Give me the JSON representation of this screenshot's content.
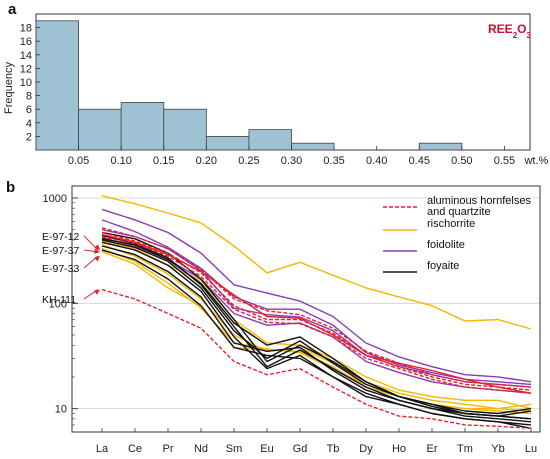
{
  "chart_data": [
    {
      "panel": "a",
      "type": "bar",
      "annotation": {
        "main": "REE",
        "sub": "2",
        "after": "O",
        "sub2": "3"
      },
      "ylabel": "Frequency",
      "xunit": "wt.%",
      "bin_edges": [
        0.0,
        0.05,
        0.1,
        0.15,
        0.2,
        0.25,
        0.3,
        0.35,
        0.4,
        0.45,
        0.5
      ],
      "values": [
        19,
        6,
        7,
        6,
        2,
        3,
        1,
        0,
        0,
        1
      ],
      "xticks": [
        "0.05",
        "0.10",
        "0.15",
        "0.20",
        "0.25",
        "0.30",
        "0.35",
        "0.40",
        "0.45",
        "0.50",
        "0.55"
      ],
      "yticks": [
        2,
        4,
        6,
        8,
        10,
        12,
        14,
        16,
        18
      ],
      "xlim": [
        0.0,
        0.58
      ],
      "ylim": [
        0,
        20
      ],
      "bar_color": "#9ec2d3",
      "grid": false
    },
    {
      "panel": "b",
      "type": "line",
      "yscale": "log",
      "ylim": [
        6,
        1300
      ],
      "yticks": [
        10,
        100,
        1000
      ],
      "categories": [
        "La",
        "Ce",
        "Pr",
        "Nd",
        "Sm",
        "Eu",
        "Gd",
        "Tb",
        "Dy",
        "Ho",
        "Er",
        "Tm",
        "Yb",
        "Lu"
      ],
      "legend": [
        {
          "label_lines": [
            "aluminous hornfelses",
            "and quartzite"
          ],
          "color": "#e8202a",
          "dash": true
        },
        {
          "label_lines": [
            "rischorrite"
          ],
          "color": "#f5b700",
          "dash": false
        },
        {
          "label_lines": [
            "foidolite"
          ],
          "color": "#8a3ab9",
          "dash": false
        },
        {
          "label_lines": [
            "foyaite"
          ],
          "color": "#111111",
          "dash": false
        }
      ],
      "sample_labels": [
        "E-97-12",
        "E-97-37",
        "E-97-33",
        "KH-111"
      ],
      "series": [
        {
          "group": "rischorrite",
          "color": "#f5b700",
          "dash": false,
          "values": [
            1050,
            880,
            720,
            580,
            350,
            195,
            245,
            185,
            140,
            115,
            95,
            68,
            70,
            57
          ]
        },
        {
          "group": "rischorrite",
          "color": "#f5b700",
          "dash": false,
          "values": [
            390,
            330,
            230,
            165,
            70,
            42,
            40,
            30,
            20,
            15,
            13,
            12,
            12,
            10
          ]
        },
        {
          "group": "rischorrite",
          "color": "#f5b700",
          "dash": false,
          "values": [
            360,
            280,
            190,
            110,
            50,
            35,
            38,
            27,
            18,
            14,
            12,
            11,
            10,
            9.5
          ]
        },
        {
          "group": "rischorrite",
          "color": "#f5b700",
          "dash": false,
          "values": [
            330,
            250,
            155,
            90,
            42,
            37,
            34,
            24,
            17,
            13,
            11,
            10,
            9.5,
            9
          ]
        },
        {
          "group": "rischorrite",
          "color": "#f5b700",
          "dash": false,
          "values": [
            310,
            235,
            140,
            95,
            38,
            36,
            35,
            25,
            16,
            13,
            11,
            10,
            10,
            11
          ]
        },
        {
          "group": "foidolite",
          "color": "#8a3ab9",
          "dash": false,
          "values": [
            780,
            620,
            470,
            300,
            150,
            125,
            105,
            75,
            42,
            31,
            25,
            21,
            20,
            18
          ]
        },
        {
          "group": "foidolite",
          "color": "#8a3ab9",
          "dash": false,
          "values": [
            620,
            480,
            340,
            215,
            115,
            88,
            88,
            62,
            34,
            26,
            22,
            19,
            18,
            17
          ]
        },
        {
          "group": "foidolite",
          "color": "#8a3ab9",
          "dash": false,
          "values": [
            500,
            430,
            330,
            205,
            90,
            78,
            74,
            55,
            32,
            25,
            21,
            18,
            17,
            16
          ]
        },
        {
          "group": "foidolite",
          "color": "#8a3ab9",
          "dash": false,
          "values": [
            420,
            350,
            260,
            170,
            80,
            62,
            65,
            48,
            28,
            22,
            18,
            16,
            15,
            14
          ]
        },
        {
          "group": "foyaite",
          "color": "#111111",
          "dash": false,
          "values": [
            470,
            410,
            300,
            170,
            70,
            28,
            40,
            28,
            18,
            13,
            11,
            9,
            8.5,
            8
          ]
        },
        {
          "group": "foyaite",
          "color": "#111111",
          "dash": false,
          "values": [
            440,
            370,
            270,
            150,
            60,
            25,
            36,
            24,
            16,
            12,
            10,
            8.5,
            8,
            7.5
          ]
        },
        {
          "group": "foyaite",
          "color": "#111111",
          "dash": false,
          "values": [
            400,
            340,
            250,
            140,
            55,
            30,
            44,
            27,
            17,
            13,
            11,
            9.5,
            9,
            10
          ]
        },
        {
          "group": "foyaite",
          "color": "#111111",
          "dash": false,
          "values": [
            380,
            320,
            230,
            130,
            48,
            24,
            32,
            20,
            14,
            11,
            9,
            8,
            7.5,
            7
          ]
        },
        {
          "group": "foyaite",
          "color": "#111111",
          "dash": false,
          "values": [
            350,
            290,
            200,
            115,
            42,
            35,
            38,
            23,
            15,
            12,
            10,
            9,
            8.5,
            8
          ]
        },
        {
          "group": "foyaite",
          "color": "#111111",
          "dash": false,
          "values": [
            320,
            260,
            170,
            95,
            38,
            32,
            30,
            20,
            13,
            11,
            9,
            8,
            7.5,
            6.5
          ]
        },
        {
          "group": "foyaite",
          "color": "#111111",
          "dash": false,
          "values": [
            410,
            360,
            260,
            155,
            65,
            40,
            48,
            30,
            18,
            13,
            10.5,
            9,
            8.5,
            9.5
          ]
        },
        {
          "group": "hornfels",
          "color": "#e8202a",
          "dash": true,
          "values": [
            520,
            430,
            330,
            210,
            110,
            85,
            78,
            58,
            35,
            27,
            21,
            18,
            17,
            16
          ]
        },
        {
          "group": "hornfels",
          "color": "#e8202a",
          "dash": true,
          "values": [
            470,
            390,
            300,
            195,
            95,
            70,
            70,
            52,
            32,
            25,
            20,
            17,
            16,
            15
          ]
        },
        {
          "group": "hornfels",
          "color": "#e8202a",
          "dash": true,
          "values": [
            430,
            370,
            280,
            180,
            88,
            66,
            64,
            48,
            30,
            24,
            19,
            16,
            15,
            14
          ]
        },
        {
          "group": "hornfels",
          "color": "#e8202a",
          "dash": false,
          "values": [
            450,
            380,
            290,
            200,
            120,
            75,
            72,
            50,
            32,
            27,
            23,
            19,
            16,
            14
          ]
        },
        {
          "group": "hornfels",
          "color": "#e8202a",
          "dash": true,
          "values": [
            135,
            110,
            80,
            58,
            28,
            21,
            24,
            16,
            11,
            8.5,
            8,
            7,
            6.8,
            6.5
          ]
        }
      ]
    }
  ]
}
